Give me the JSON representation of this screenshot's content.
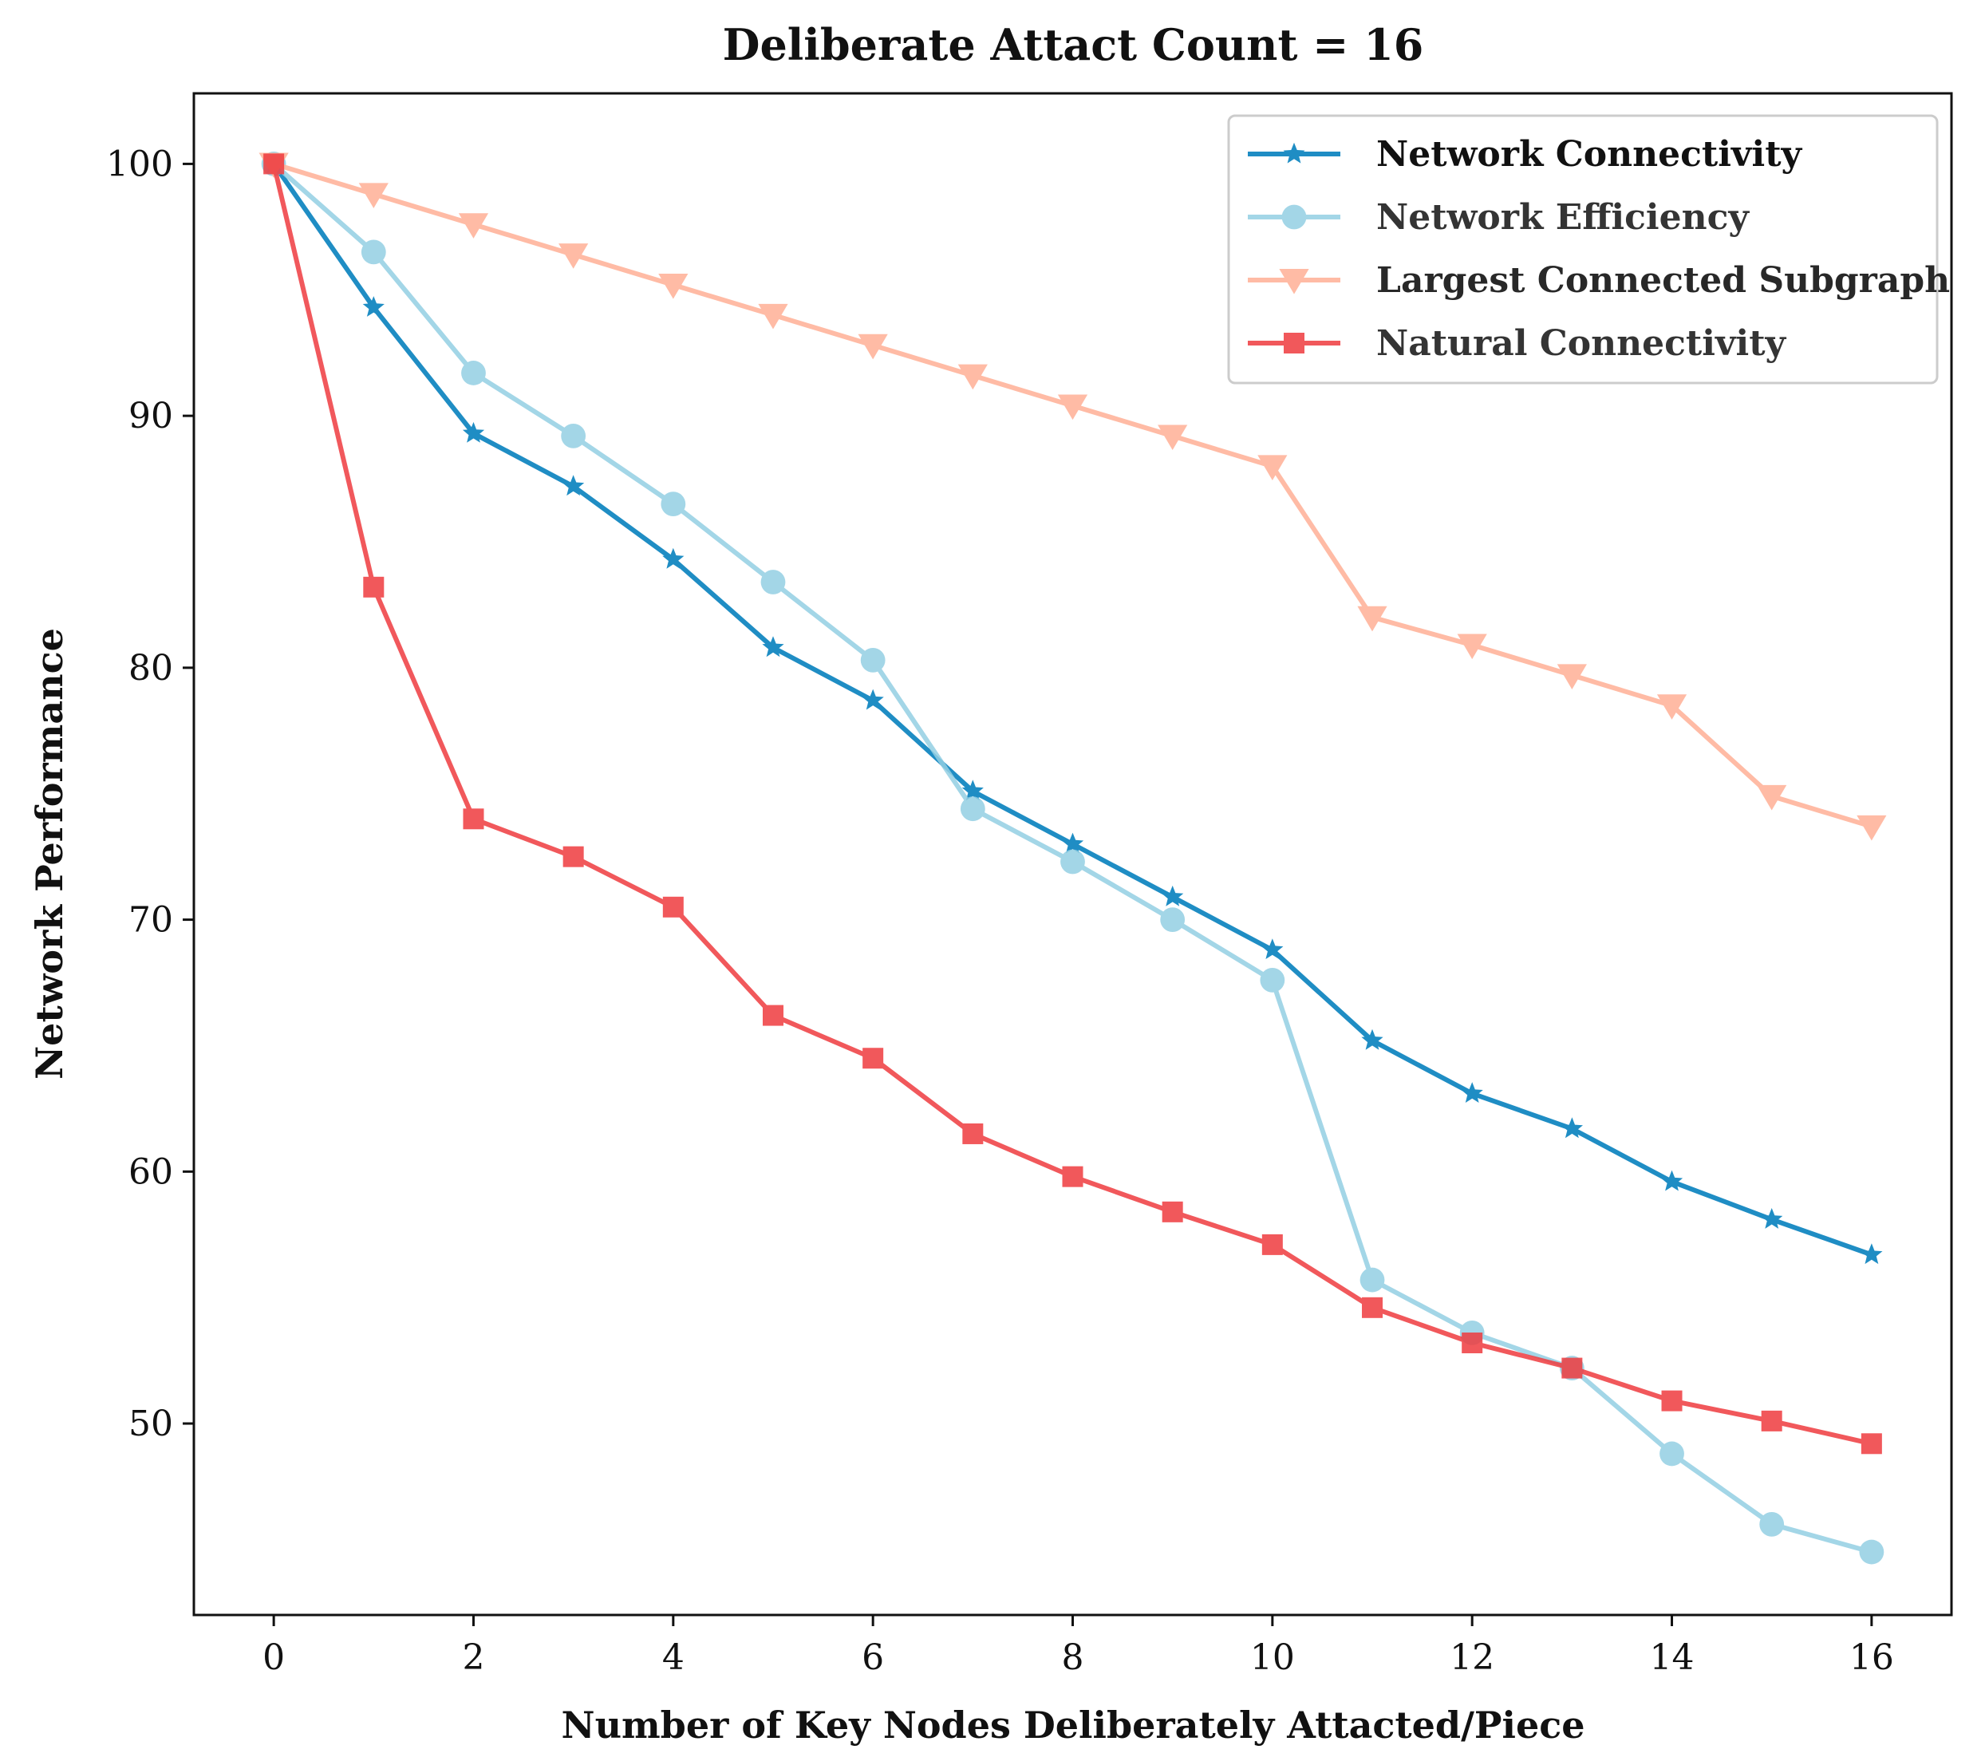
{
  "chart_data": {
    "type": "line",
    "title": "Deliberate Attact Count = 16",
    "xlabel": "Number of Key Nodes Deliberately Attacted/Piece",
    "ylabel": "Network Performance",
    "x": [
      0,
      1,
      2,
      3,
      4,
      5,
      6,
      7,
      8,
      9,
      10,
      11,
      12,
      13,
      14,
      15,
      16
    ],
    "xlim": [
      -0.8,
      16.8
    ],
    "ylim": [
      42.4,
      102.8
    ],
    "x_ticks": [
      0,
      2,
      4,
      6,
      8,
      10,
      12,
      14,
      16
    ],
    "x_tick_labels": [
      "0",
      "2",
      "4",
      "6",
      "8",
      "10",
      "12",
      "14",
      "16"
    ],
    "y_ticks": [
      50,
      60,
      70,
      80,
      90,
      100
    ],
    "y_tick_labels": [
      "50",
      "60",
      "70",
      "80",
      "90",
      "100"
    ],
    "grid": false,
    "legend_position": "top-right",
    "series": [
      {
        "name": "Network Connectivity",
        "color": "#1f8dc4",
        "marker": "star",
        "values": [
          100,
          94.3,
          89.3,
          87.2,
          84.3,
          80.8,
          78.7,
          75.1,
          73.0,
          70.9,
          68.8,
          65.2,
          63.1,
          61.7,
          59.6,
          58.1,
          56.7
        ]
      },
      {
        "name": "Network Efficiency",
        "color": "#93cfe3",
        "marker": "circle",
        "values": [
          100,
          96.5,
          91.7,
          89.2,
          86.5,
          83.4,
          80.3,
          74.4,
          72.3,
          70.0,
          67.6,
          55.7,
          53.6,
          52.2,
          48.8,
          46.0,
          44.9
        ]
      },
      {
        "name": "Largest Connected Subgraph",
        "color": "#ffb49c",
        "marker": "triangle-down",
        "values": [
          100,
          98.8,
          97.6,
          96.4,
          95.2,
          94.0,
          92.8,
          91.6,
          90.4,
          89.2,
          88.0,
          82.0,
          80.9,
          79.7,
          78.5,
          74.9,
          73.7
        ]
      },
      {
        "name": "Natural Connectivity",
        "color": "#ef3b3f",
        "marker": "square",
        "values": [
          100,
          83.2,
          74.0,
          72.5,
          70.5,
          66.2,
          64.5,
          61.5,
          59.8,
          58.4,
          57.1,
          54.6,
          53.2,
          52.2,
          50.9,
          50.1,
          49.2
        ]
      }
    ]
  }
}
